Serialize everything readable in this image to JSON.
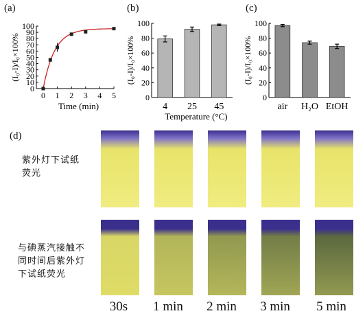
{
  "panels": {
    "a": "(a)",
    "b": "(b)",
    "c": "(c)",
    "d": "(d)"
  },
  "ylabel": "(I₀-I)/I₀×100%",
  "chart_data": [
    {
      "id": "a",
      "type": "line",
      "title": "",
      "xlabel": "Time (min)",
      "ylabel": "(I₀-I)/I₀×100%",
      "xlim": [
        0,
        5
      ],
      "ylim": [
        0,
        100
      ],
      "xticks": [
        "0",
        "1",
        "2",
        "3",
        "4",
        "5"
      ],
      "yticks": [
        "0",
        "10",
        "20",
        "30",
        "40",
        "50",
        "60",
        "70",
        "80",
        "90",
        "100"
      ],
      "series": [
        {
          "x": [
            0,
            0.5,
            1,
            2,
            3,
            5
          ],
          "y": [
            0,
            46,
            66,
            87,
            91,
            96
          ],
          "err": [
            1,
            3,
            7,
            1.5,
            3,
            1
          ]
        }
      ],
      "fit_color": "#cc2222"
    },
    {
      "id": "b",
      "type": "bar",
      "title": "",
      "xlabel": "Temperature (°C)",
      "ylabel": "(I₀-I)/I₀×100%",
      "ylim": [
        0,
        100
      ],
      "yticks": [
        "0",
        "20",
        "40",
        "60",
        "80",
        "100"
      ],
      "categories": [
        "4",
        "25",
        "45"
      ],
      "values": [
        79,
        92,
        98
      ],
      "err": [
        4,
        3,
        1
      ],
      "bar_color": "#b5b5b5"
    },
    {
      "id": "c",
      "type": "bar",
      "title": "",
      "xlabel": "",
      "ylabel": "(I₀-I)/I₀×100%",
      "ylim": [
        0,
        100
      ],
      "yticks": [
        "0",
        "20",
        "40",
        "60",
        "80",
        "100"
      ],
      "categories": [
        "air",
        "H₂O",
        "EtOH"
      ],
      "values": [
        97,
        74,
        69
      ],
      "err": [
        1.5,
        2,
        3
      ],
      "bar_color": "#8c8c8c"
    }
  ],
  "panel_d": {
    "row1_caption": "紫外灯下试纸\n荧光",
    "row2_caption": "与碘蒸汽接触不\n同时间后紫外灯\n下试纸荧光",
    "times": [
      "30s",
      "1 min",
      "2 min",
      "3 min",
      "5 min"
    ],
    "row1_levels": [
      0,
      0,
      0,
      0,
      0
    ],
    "row2_levels": [
      0.1,
      0.35,
      0.55,
      0.75,
      0.9
    ],
    "colors": {
      "fluor": "#e8e46a",
      "uv_bg": "#3a2f8c",
      "quenched": "#4a5a3a"
    }
  }
}
